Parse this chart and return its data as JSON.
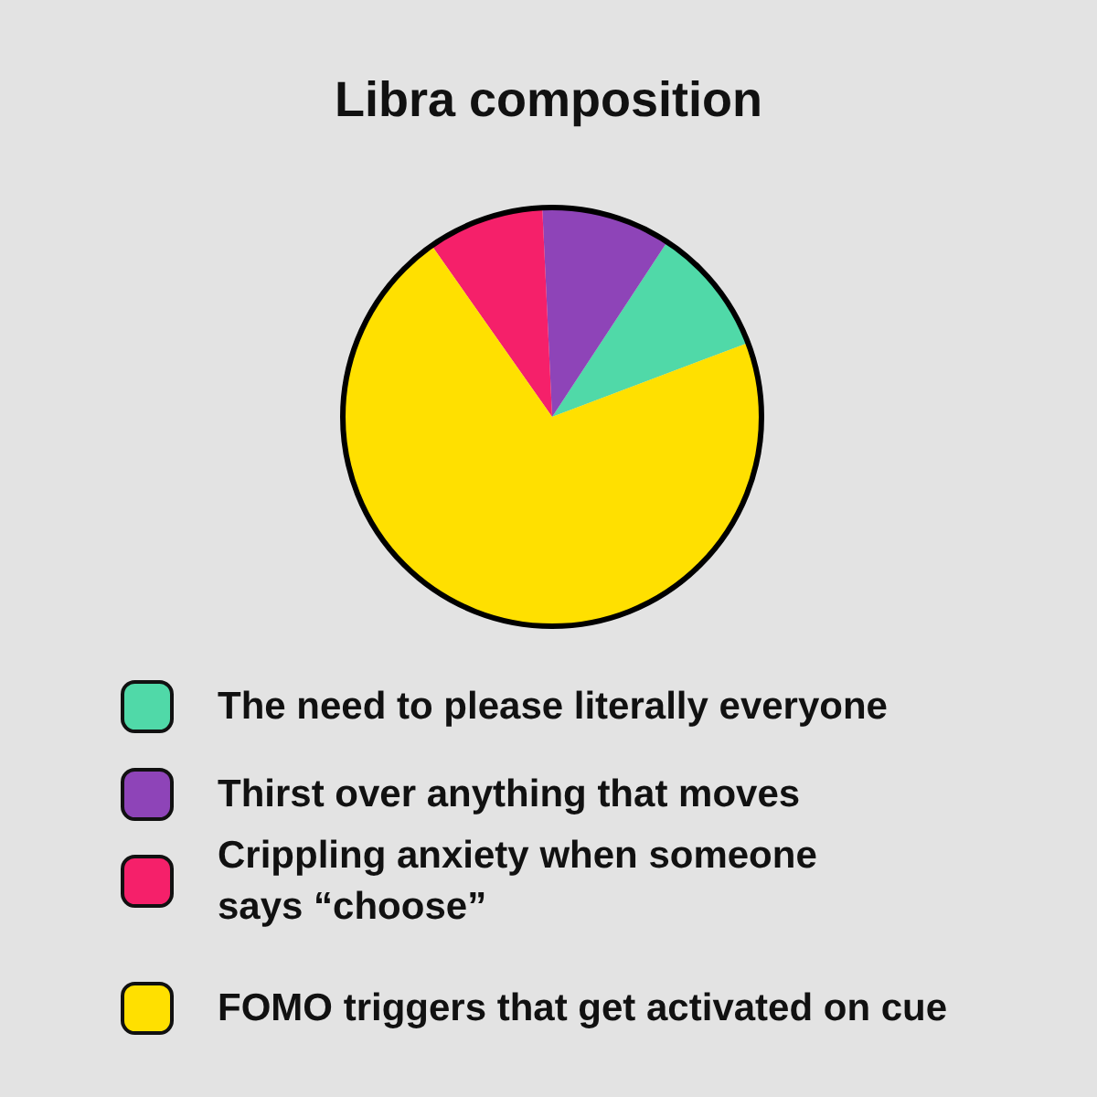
{
  "chart_data": {
    "type": "pie",
    "title": "Libra composition",
    "categories": [
      "The need to please literally everyone",
      "Thirst over anything that moves",
      "Crippling anxiety when someone says “choose”",
      "FOMO triggers that get activated on cue"
    ],
    "values": [
      10,
      10,
      9,
      71
    ],
    "colors": [
      "#50d9a8",
      "#8e44b8",
      "#f5206a",
      "#ffe000"
    ],
    "legend": "bottom"
  }
}
